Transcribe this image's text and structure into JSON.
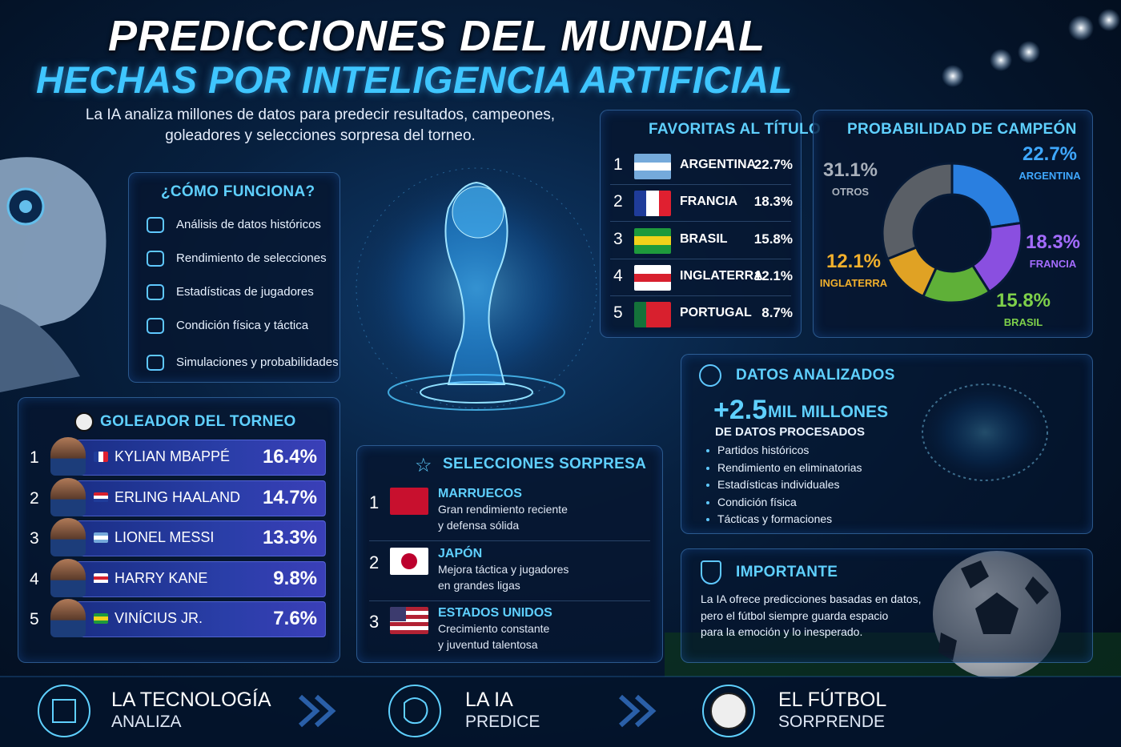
{
  "header": {
    "title_line1": "PREDICCIONES DEL MUNDIAL",
    "title_line2": "HECHAS POR INTELIGENCIA ARTIFICIAL",
    "subtitle": [
      "La IA analiza millones de datos para predecir resultados, campeones,",
      "goleadores y selecciones sorpresa del torneo."
    ]
  },
  "how_it_works": {
    "title": "¿CÓMO FUNCIONA?",
    "items": [
      "Análisis de datos históricos",
      "Rendimiento de selecciones",
      "Estadísticas de jugadores",
      "Condición física y táctica",
      "Simulaciones y probabilidades"
    ]
  },
  "favorites": {
    "title": "FAVORITAS AL TÍTULO",
    "rows": [
      {
        "rank": 1,
        "team": "ARGENTINA",
        "probability": "22.7%"
      },
      {
        "rank": 2,
        "team": "FRANCIA",
        "probability": "18.3%"
      },
      {
        "rank": 3,
        "team": "BRASIL",
        "probability": "15.8%"
      },
      {
        "rank": 4,
        "team": "INGLATERRA",
        "probability": "12.1%"
      },
      {
        "rank": 5,
        "team": "PORTUGAL",
        "probability": "8.7%"
      }
    ]
  },
  "chart_data": {
    "type": "pie",
    "title": "PROBABILIDAD DE CAMPEÓN",
    "categories": [
      "ARGENTINA",
      "FRANCIA",
      "BRASIL",
      "INGLATERRA",
      "OTROS"
    ],
    "values": [
      22.7,
      18.3,
      15.8,
      12.1,
      31.1
    ],
    "value_labels": [
      "22.7%",
      "18.3%",
      "15.8%",
      "12.1%",
      "31.1%"
    ],
    "colors": [
      "#2a7fe0",
      "#8a4fe0",
      "#5fb038",
      "#e0a224",
      "#5a5f66"
    ]
  },
  "top_scorer": {
    "title": "GOLEADOR DEL TORNEO",
    "rows": [
      {
        "rank": 1,
        "player": "KYLIAN MBAPPÉ",
        "probability": "16.4%"
      },
      {
        "rank": 2,
        "player": "ERLING HAALAND",
        "probability": "14.7%"
      },
      {
        "rank": 3,
        "player": "LIONEL MESSI",
        "probability": "13.3%"
      },
      {
        "rank": 4,
        "player": "HARRY KANE",
        "probability": "9.8%"
      },
      {
        "rank": 5,
        "player": "VINÍCIUS JR.",
        "probability": "7.6%"
      }
    ]
  },
  "surprise_teams": {
    "title": "SELECCIONES SORPRESA",
    "rows": [
      {
        "rank": 1,
        "team": "MARRUECOS",
        "description": [
          "Gran rendimiento reciente",
          "y defensa sólida"
        ]
      },
      {
        "rank": 2,
        "team": "JAPÓN",
        "description": [
          "Mejora táctica y jugadores",
          "en grandes ligas"
        ]
      },
      {
        "rank": 3,
        "team": "ESTADOS UNIDOS",
        "description": [
          "Crecimiento constante",
          "y juventud talentosa"
        ]
      }
    ]
  },
  "data_analyzed": {
    "title": "DATOS ANALIZADOS",
    "amount": "+2.5",
    "unit": "MIL MILLONES",
    "caption": "DE DATOS PROCESADOS",
    "items": [
      "Partidos históricos",
      "Rendimiento en eliminatorias",
      "Estadísticas individuales",
      "Condición física",
      "Tácticas y formaciones"
    ]
  },
  "important": {
    "title": "IMPORTANTE",
    "text": [
      "La IA ofrece predicciones basadas en datos,",
      "pero el fútbol siempre guarda espacio",
      "para la emoción y lo inesperado."
    ]
  },
  "footer": {
    "steps": [
      {
        "line1": "LA TECNOLOGÍA",
        "line2": "ANALIZA"
      },
      {
        "line1": "LA IA",
        "line2": "PREDICE"
      },
      {
        "line1": "EL FÚTBOL",
        "line2": "SORPRENDE"
      }
    ]
  }
}
